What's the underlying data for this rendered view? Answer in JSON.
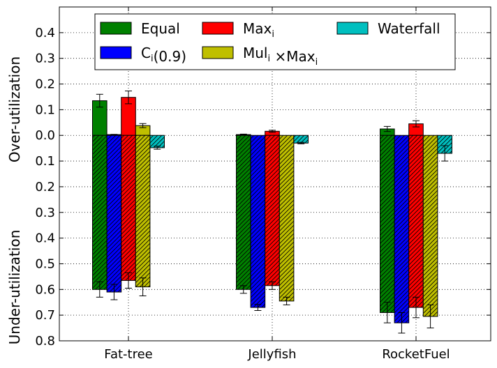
{
  "chart_data": {
    "type": "bar",
    "categories": [
      "Fat-tree",
      "Jellyfish",
      "RocketFuel"
    ],
    "ylabel_top": "Over-utilization",
    "ylabel_bottom": "Under-utilization",
    "yticks": [
      {
        "value": 0.4,
        "label": "0.4"
      },
      {
        "value": 0.3,
        "label": "0.3"
      },
      {
        "value": 0.2,
        "label": "0.2"
      },
      {
        "value": 0.1,
        "label": "0.1"
      },
      {
        "value": 0.0,
        "label": "0.0"
      },
      {
        "value": -0.1,
        "label": "0.1"
      },
      {
        "value": -0.2,
        "label": "0.2"
      },
      {
        "value": -0.3,
        "label": "0.3"
      },
      {
        "value": -0.4,
        "label": "0.4"
      },
      {
        "value": -0.5,
        "label": "0.5"
      },
      {
        "value": -0.6,
        "label": "0.6"
      },
      {
        "value": -0.7,
        "label": "0.7"
      },
      {
        "value": -0.8,
        "label": "0.8"
      }
    ],
    "ylim": [
      -0.8,
      0.5
    ],
    "grid": true,
    "legend_position": "top",
    "series": [
      {
        "name": "Equal",
        "name_main": "Equal",
        "color": "#008000",
        "over": [
          0.135,
          0.003,
          0.025
        ],
        "over_err": [
          0.025,
          0.002,
          0.01
        ],
        "under": [
          0.6,
          0.6,
          0.69
        ],
        "under_err": [
          0.03,
          0.015,
          0.04
        ]
      },
      {
        "name": "C_i(0.9)",
        "name_main": "C",
        "name_sub": "i",
        "name_tail": "(0.9)",
        "color": "#0000ff",
        "over": [
          0.003,
          0.0,
          0.0
        ],
        "over_err": [
          0.001,
          0.0,
          0.0
        ],
        "under": [
          0.61,
          0.67,
          0.73
        ],
        "under_err": [
          0.03,
          0.012,
          0.04
        ]
      },
      {
        "name": "Max_i",
        "name_main": "Max",
        "name_sub": "i",
        "name_tail": "",
        "color": "#ff0000",
        "over": [
          0.148,
          0.016,
          0.045
        ],
        "over_err": [
          0.025,
          0.004,
          0.012
        ],
        "under": [
          0.565,
          0.585,
          0.67
        ],
        "under_err": [
          0.03,
          0.015,
          0.04
        ]
      },
      {
        "name": "Mul_i ×Max_i",
        "name_main": "Mul",
        "name_sub": "i",
        "name_mid": " ×Max",
        "name_sub2": "i",
        "color": "#bfbf00",
        "over": [
          0.038,
          0.0,
          0.0
        ],
        "over_err": [
          0.008,
          0.0,
          0.0
        ],
        "under": [
          0.59,
          0.645,
          0.705
        ],
        "under_err": [
          0.035,
          0.015,
          0.045
        ]
      },
      {
        "name": "Waterfall",
        "name_main": "Waterfall",
        "color": "#00bfbf",
        "over": [
          0.0,
          0.0,
          0.0
        ],
        "over_err": [
          0.0,
          0.0,
          0.0
        ],
        "under": [
          0.048,
          0.03,
          0.07
        ],
        "under_err": [
          0.006,
          0.003,
          0.03
        ]
      }
    ]
  }
}
